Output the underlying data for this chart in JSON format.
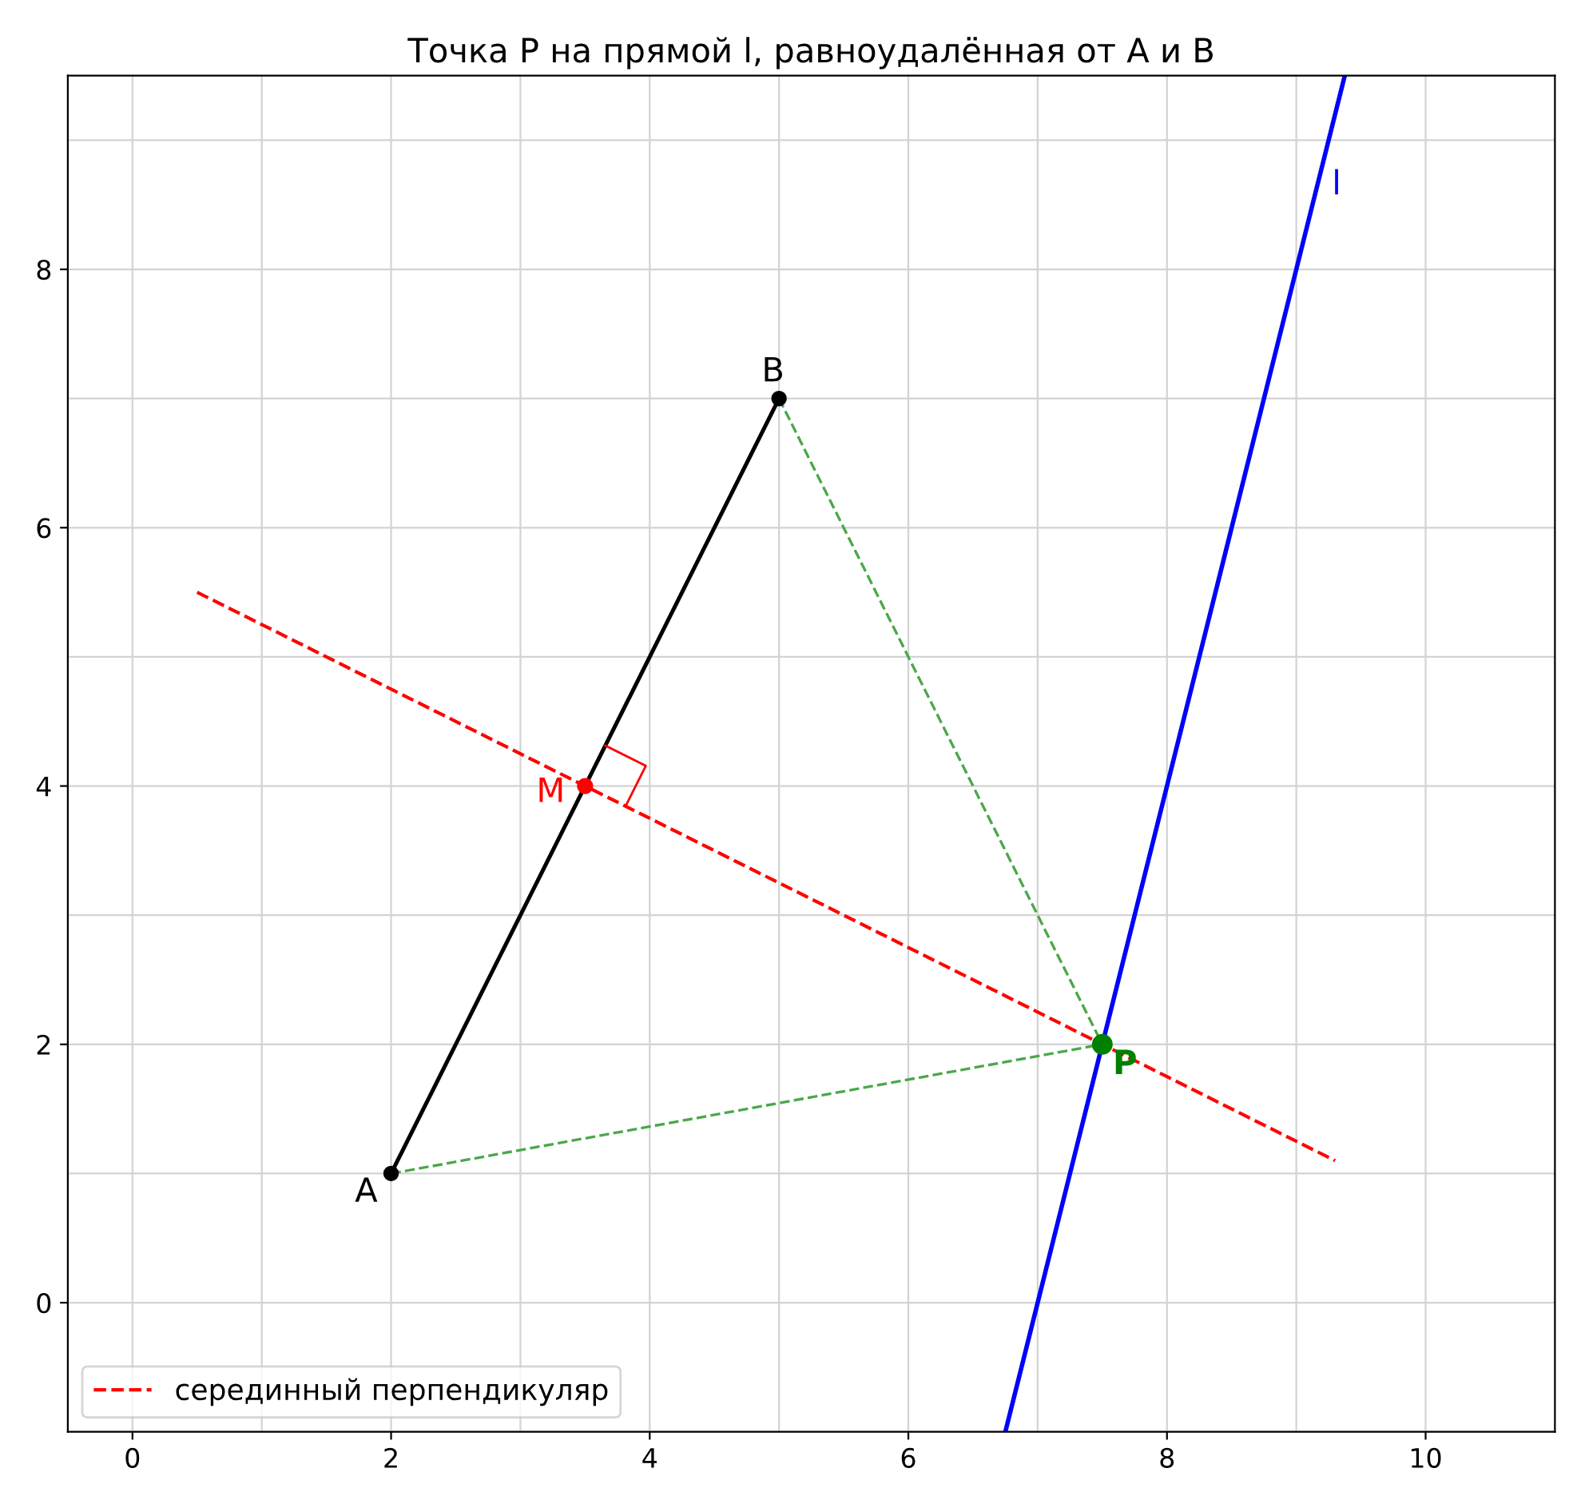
{
  "chart_data": {
    "type": "line",
    "title": "Точка P на прямой l, равноудалённая от A и B",
    "xlim": [
      -0.5,
      11
    ],
    "ylim": [
      -1,
      9.5
    ],
    "xticks": [
      0,
      {
        "value": 1,
        "label": null
      },
      2,
      {
        "value": 3,
        "label": null
      },
      4,
      {
        "value": 5,
        "label": null
      },
      6,
      {
        "value": 7,
        "label": null
      },
      8,
      {
        "value": 9,
        "label": null
      },
      10
    ],
    "yticks": [
      {
        "value": -1,
        "label": null
      },
      0,
      {
        "value": 1,
        "label": null
      },
      2,
      {
        "value": 3,
        "label": null
      },
      4,
      {
        "value": 5,
        "label": null
      },
      6,
      {
        "value": 7,
        "label": null
      },
      8,
      {
        "value": 9,
        "label": null
      }
    ],
    "grid": true,
    "legend": "bottom left",
    "series": [
      {
        "name": "серединный перпендикуляр",
        "color": "#ff0000",
        "line_style": "dashed",
        "x": [
          0.5,
          9.3
        ],
        "values": [
          5.5,
          1.1
        ]
      },
      {
        "color": "#4aa84a",
        "line_style": "dashed",
        "x": [
          2,
          7.5
        ],
        "values": [
          1,
          2
        ]
      },
      {
        "color": "#4aa84a",
        "line_style": "dashed",
        "x": [
          5,
          7.5
        ],
        "values": [
          7,
          2
        ]
      },
      {
        "color": "#0000ff",
        "line_style": "solid",
        "x": [
          6.75,
          9.375
        ],
        "values": [
          -1,
          9.5
        ]
      },
      {
        "color": "#000000",
        "line_style": "solid",
        "marker": "circle",
        "x": [
          2,
          5
        ],
        "values": [
          1,
          7
        ]
      },
      {
        "type": "scatter",
        "color": "#ff0000",
        "marker": "circle",
        "x": [
          3.5
        ],
        "values": [
          4
        ]
      },
      {
        "type": "scatter",
        "color": "#008000",
        "marker": "circle",
        "x": [
          7.5
        ],
        "values": [
          2
        ]
      }
    ],
    "annotations": [
      {
        "text": "A",
        "x": 2,
        "y": 1
      },
      {
        "text": "B",
        "x": 5,
        "y": 7
      },
      {
        "text": "M",
        "x": 3.5,
        "y": 4
      },
      {
        "text": "P",
        "x": 7.5,
        "y": 2
      },
      {
        "text": "l",
        "x": 9.125,
        "y": 8.5
      }
    ]
  }
}
